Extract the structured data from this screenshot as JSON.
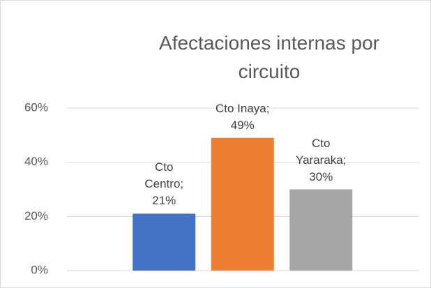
{
  "chart_data": {
    "type": "bar",
    "title": "Afectaciones internas por circuito",
    "categories": [
      "Cto Centro",
      "Cto Inaya",
      "Cto Yararaka"
    ],
    "values": [
      21,
      49,
      30
    ],
    "value_labels": [
      "Cto Centro; 21%",
      "Cto Inaya; 49%",
      "Cto Yararaka; 30%"
    ],
    "colors": [
      "#4472c4",
      "#ed7d31",
      "#a5a5a5"
    ],
    "ylim": [
      0,
      60
    ],
    "yticks": [
      {
        "value": 0,
        "label": "0%"
      },
      {
        "value": 20,
        "label": "20%"
      },
      {
        "value": 40,
        "label": "40%"
      },
      {
        "value": 60,
        "label": "60%"
      }
    ],
    "grid": true
  }
}
